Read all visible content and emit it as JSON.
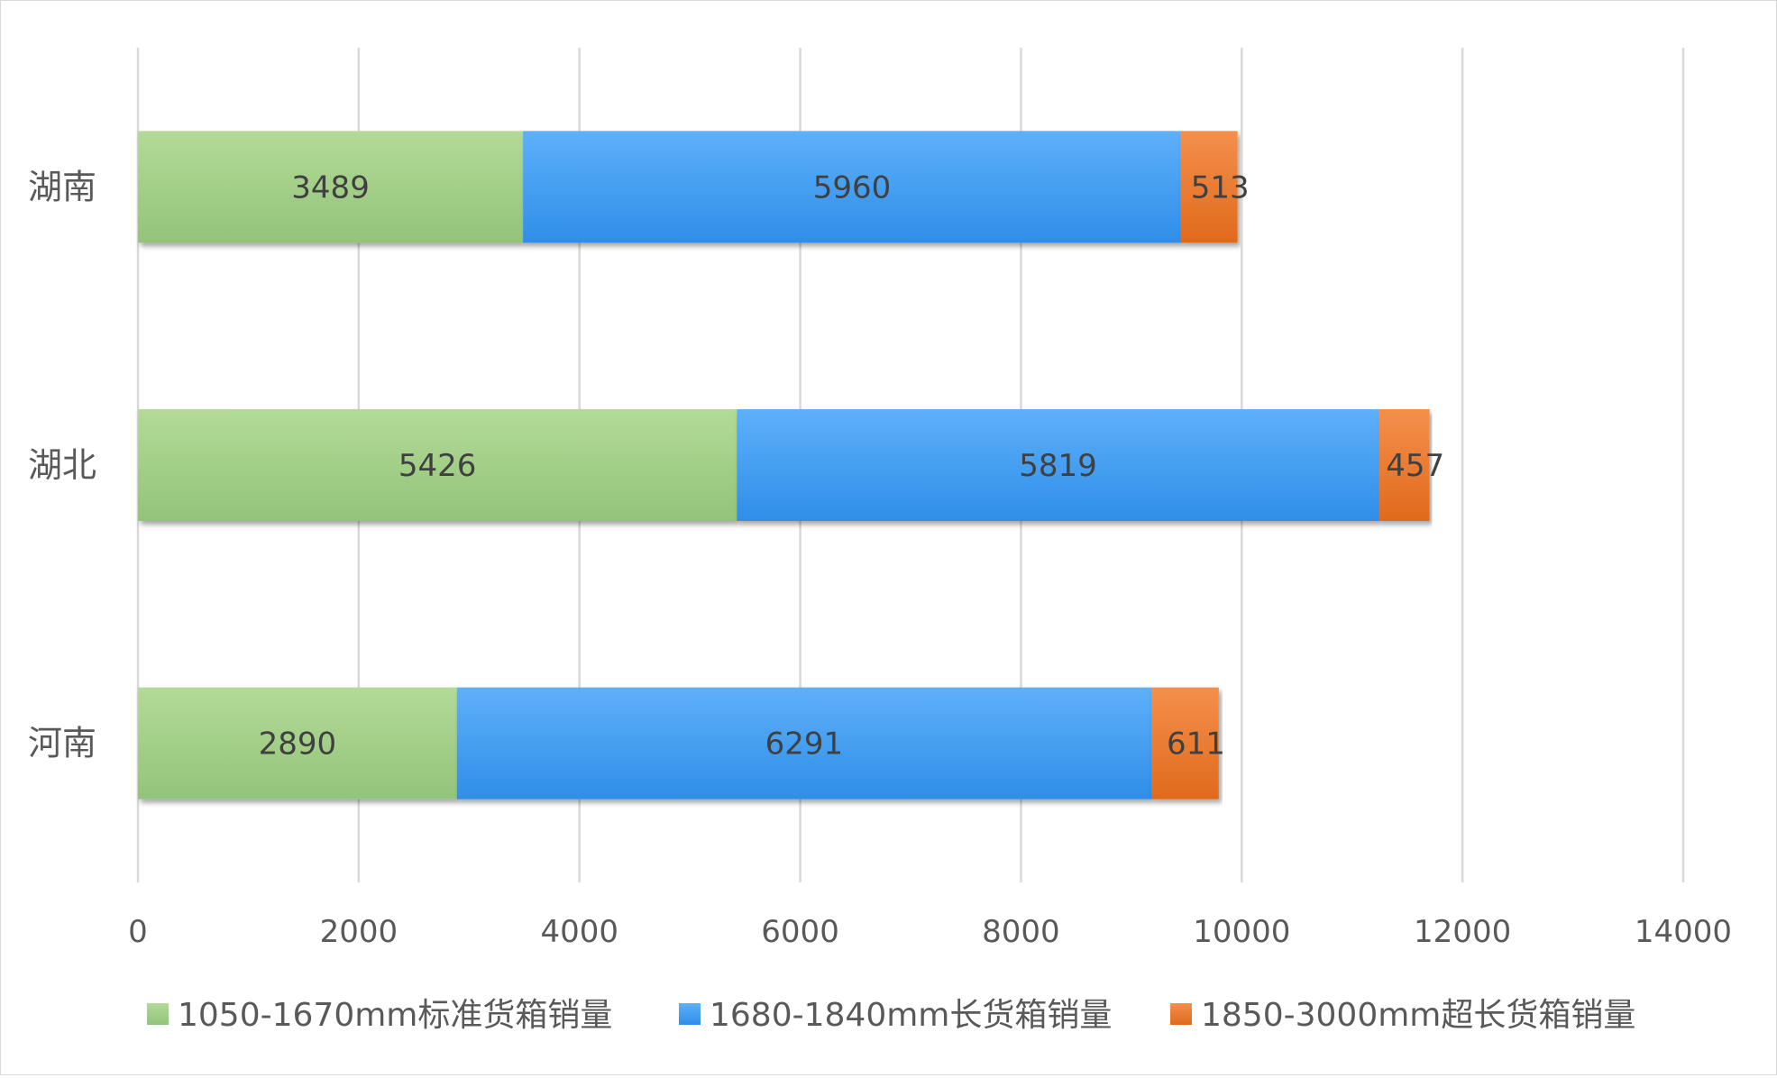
{
  "chart_data": {
    "type": "bar",
    "orientation": "horizontal",
    "stacked": true,
    "categories": [
      "河南",
      "湖北",
      "湖南"
    ],
    "series": [
      {
        "name": "1050-1670mm标准货箱销量",
        "values": [
          2890,
          5426,
          3489
        ],
        "color": "#a9d18e"
      },
      {
        "name": "1680-1840mm长货箱销量",
        "values": [
          6291,
          5819,
          5960
        ],
        "color": "#4ea6f5"
      },
      {
        "name": "1850-3000mm超长货箱销量",
        "values": [
          611,
          457,
          513
        ],
        "color": "#ed7d31"
      }
    ],
    "xlim": [
      0,
      14000
    ],
    "xticks": [
      "0",
      "2000",
      "4000",
      "6000",
      "8000",
      "10000",
      "12000",
      "14000"
    ],
    "grid": "vertical",
    "legend_position": "bottom",
    "data_labels": true
  }
}
